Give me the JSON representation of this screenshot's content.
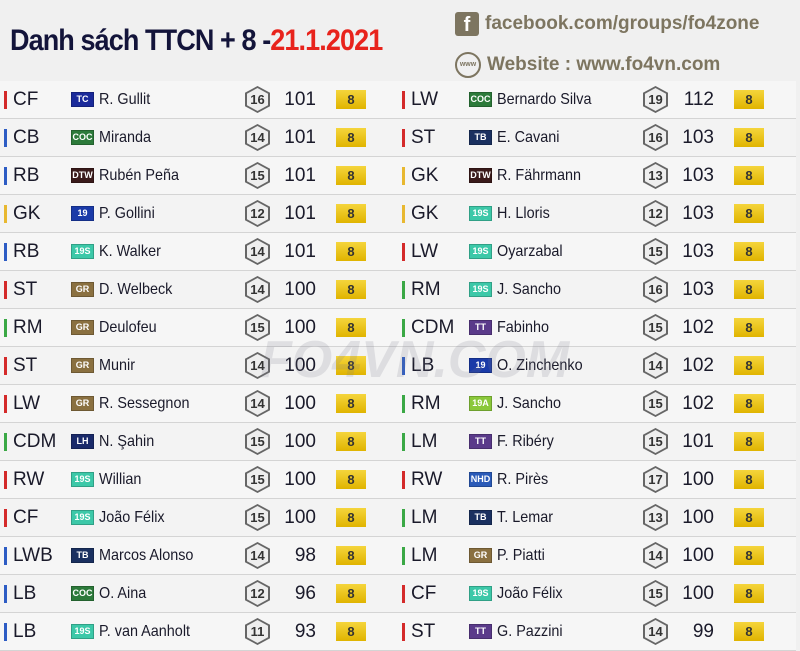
{
  "header": {
    "title": "Danh sách TTCN + 8 -",
    "date": "21.1.2021",
    "facebook": "facebook.com/groups/fo4zone",
    "website": "Website : www.fo4vn.com",
    "facebook_icon": "facebook-icon",
    "website_icon": "globe-icon"
  },
  "watermark": "FO4VN.COM",
  "colors": {
    "attack": "#d42a2a",
    "defense": "#2d5cc4",
    "goalkeeper": "#e8b830",
    "midfield": "#3aa845",
    "level": "#e8c320",
    "date": "#e8231c"
  },
  "badge_colors": {
    "TC": "#1a2a9a",
    "COC": "#2c7a3a",
    "DTW": "#3a1a1a",
    "19": "#1a3aa8",
    "19S": "#3cc8a8",
    "GR": "#8a7040",
    "LH": "#1a2a6a",
    "TB": "#1a3060",
    "TT": "#5a3a8a",
    "NHD": "#2a5ab8",
    "19A": "#8ac83a"
  },
  "left": [
    {
      "pos": "CF",
      "type": "attack",
      "season": "TC",
      "name": "R. Gullit",
      "rating": "16",
      "ovr": "101",
      "level": "8"
    },
    {
      "pos": "CB",
      "type": "defense",
      "season": "COC",
      "name": "Miranda",
      "rating": "14",
      "ovr": "101",
      "level": "8"
    },
    {
      "pos": "RB",
      "type": "defense",
      "season": "DTW",
      "name": "Rubén Peña",
      "rating": "15",
      "ovr": "101",
      "level": "8"
    },
    {
      "pos": "GK",
      "type": "goalkeeper",
      "season": "19",
      "name": "P. Gollini",
      "rating": "12",
      "ovr": "101",
      "level": "8"
    },
    {
      "pos": "RB",
      "type": "defense",
      "season": "19S",
      "name": "K. Walker",
      "rating": "14",
      "ovr": "101",
      "level": "8"
    },
    {
      "pos": "ST",
      "type": "attack",
      "season": "GR",
      "name": "D. Welbeck",
      "rating": "14",
      "ovr": "100",
      "level": "8"
    },
    {
      "pos": "RM",
      "type": "midfield",
      "season": "GR",
      "name": "Deulofeu",
      "rating": "15",
      "ovr": "100",
      "level": "8"
    },
    {
      "pos": "ST",
      "type": "attack",
      "season": "GR",
      "name": "Munir",
      "rating": "14",
      "ovr": "100",
      "level": "8"
    },
    {
      "pos": "LW",
      "type": "attack",
      "season": "GR",
      "name": "R. Sessegnon",
      "rating": "14",
      "ovr": "100",
      "level": "8"
    },
    {
      "pos": "CDM",
      "type": "midfield",
      "season": "LH",
      "name": "N. Şahin",
      "rating": "15",
      "ovr": "100",
      "level": "8"
    },
    {
      "pos": "RW",
      "type": "attack",
      "season": "19S",
      "name": "Willian",
      "rating": "15",
      "ovr": "100",
      "level": "8"
    },
    {
      "pos": "CF",
      "type": "attack",
      "season": "19S",
      "name": "João Félix",
      "rating": "15",
      "ovr": "100",
      "level": "8"
    },
    {
      "pos": "LWB",
      "type": "defense",
      "season": "TB",
      "name": "Marcos Alonso",
      "rating": "14",
      "ovr": "98",
      "level": "8"
    },
    {
      "pos": "LB",
      "type": "defense",
      "season": "COC",
      "name": "O. Aina",
      "rating": "12",
      "ovr": "96",
      "level": "8"
    },
    {
      "pos": "LB",
      "type": "defense",
      "season": "19S",
      "name": "P. van Aanholt",
      "rating": "11",
      "ovr": "93",
      "level": "8"
    }
  ],
  "right": [
    {
      "pos": "LW",
      "type": "attack",
      "season": "COC",
      "name": "Bernardo Silva",
      "rating": "19",
      "ovr": "112",
      "level": "8"
    },
    {
      "pos": "ST",
      "type": "attack",
      "season": "TB",
      "name": "E. Cavani",
      "rating": "16",
      "ovr": "103",
      "level": "8"
    },
    {
      "pos": "GK",
      "type": "goalkeeper",
      "season": "DTW",
      "name": "R. Fährmann",
      "rating": "13",
      "ovr": "103",
      "level": "8"
    },
    {
      "pos": "GK",
      "type": "goalkeeper",
      "season": "19S",
      "name": "H. Lloris",
      "rating": "12",
      "ovr": "103",
      "level": "8"
    },
    {
      "pos": "LW",
      "type": "attack",
      "season": "19S",
      "name": "Oyarzabal",
      "rating": "15",
      "ovr": "103",
      "level": "8"
    },
    {
      "pos": "RM",
      "type": "midfield",
      "season": "19S",
      "name": "J. Sancho",
      "rating": "16",
      "ovr": "103",
      "level": "8"
    },
    {
      "pos": "CDM",
      "type": "midfield",
      "season": "TT",
      "name": "Fabinho",
      "rating": "15",
      "ovr": "102",
      "level": "8"
    },
    {
      "pos": "LB",
      "type": "defense",
      "season": "19",
      "name": "O. Zinchenko",
      "rating": "14",
      "ovr": "102",
      "level": "8"
    },
    {
      "pos": "RM",
      "type": "midfield",
      "season": "19A",
      "name": "J. Sancho",
      "rating": "15",
      "ovr": "102",
      "level": "8"
    },
    {
      "pos": "LM",
      "type": "midfield",
      "season": "TT",
      "name": "F. Ribéry",
      "rating": "15",
      "ovr": "101",
      "level": "8"
    },
    {
      "pos": "RW",
      "type": "attack",
      "season": "NHD",
      "name": "R. Pirès",
      "rating": "17",
      "ovr": "100",
      "level": "8"
    },
    {
      "pos": "LM",
      "type": "midfield",
      "season": "TB",
      "name": "T. Lemar",
      "rating": "13",
      "ovr": "100",
      "level": "8"
    },
    {
      "pos": "LM",
      "type": "midfield",
      "season": "GR",
      "name": "P. Piatti",
      "rating": "14",
      "ovr": "100",
      "level": "8"
    },
    {
      "pos": "CF",
      "type": "attack",
      "season": "19S",
      "name": "João Félix",
      "rating": "15",
      "ovr": "100",
      "level": "8"
    },
    {
      "pos": "ST",
      "type": "attack",
      "season": "TT",
      "name": "G. Pazzini",
      "rating": "14",
      "ovr": "99",
      "level": "8"
    }
  ]
}
